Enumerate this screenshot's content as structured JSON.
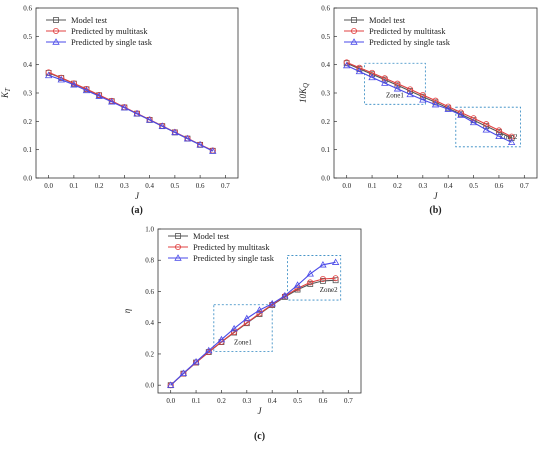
{
  "colors": {
    "model_test": "#555555",
    "multitask": "#e04040",
    "single_task": "#4a4ae8",
    "zone_box": "#2e86c1",
    "axis": "#333333"
  },
  "chart_data": [
    {
      "type": "line",
      "panel_label": "(a)",
      "xlabel": "J",
      "ylabel": "K_T",
      "xlim": [
        -0.05,
        0.75
      ],
      "ylim": [
        0,
        0.6
      ],
      "xticks": [
        "0.0",
        "0.1",
        "0.2",
        "0.3",
        "0.4",
        "0.5",
        "0.6",
        "0.7"
      ],
      "yticks": [
        "0.0",
        "0.1",
        "0.2",
        "0.3",
        "0.4",
        "0.5",
        "0.6"
      ],
      "legend_position": "top-left",
      "grid": false,
      "x": [
        0.0,
        0.05,
        0.1,
        0.15,
        0.2,
        0.25,
        0.3,
        0.35,
        0.4,
        0.45,
        0.5,
        0.55,
        0.6,
        0.65
      ],
      "series": [
        {
          "name": "Model test",
          "marker": "square",
          "values": [
            0.371,
            0.353,
            0.333,
            0.313,
            0.292,
            0.271,
            0.249,
            0.227,
            0.205,
            0.183,
            0.161,
            0.139,
            0.117,
            0.096
          ]
        },
        {
          "name": "Predicted by multitask",
          "marker": "circle",
          "values": [
            0.373,
            0.354,
            0.334,
            0.314,
            0.293,
            0.272,
            0.25,
            0.228,
            0.206,
            0.184,
            0.162,
            0.14,
            0.118,
            0.097
          ]
        },
        {
          "name": "Predicted by single task",
          "marker": "triangle",
          "values": [
            0.362,
            0.347,
            0.329,
            0.309,
            0.289,
            0.269,
            0.248,
            0.227,
            0.205,
            0.183,
            0.161,
            0.139,
            0.117,
            0.095
          ]
        }
      ],
      "zones": []
    },
    {
      "type": "line",
      "panel_label": "(b)",
      "xlabel": "J",
      "ylabel": "10K_Q",
      "xlim": [
        -0.05,
        0.75
      ],
      "ylim": [
        0,
        0.6
      ],
      "xticks": [
        "0.0",
        "0.1",
        "0.2",
        "0.3",
        "0.4",
        "0.5",
        "0.6",
        "0.7"
      ],
      "yticks": [
        "0.0",
        "0.1",
        "0.2",
        "0.3",
        "0.4",
        "0.5",
        "0.6"
      ],
      "legend_position": "top-left",
      "grid": false,
      "x": [
        0.0,
        0.05,
        0.1,
        0.15,
        0.2,
        0.25,
        0.3,
        0.35,
        0.4,
        0.45,
        0.5,
        0.55,
        0.6,
        0.65
      ],
      "series": [
        {
          "name": "Model test",
          "marker": "square",
          "values": [
            0.405,
            0.385,
            0.366,
            0.347,
            0.327,
            0.307,
            0.287,
            0.267,
            0.246,
            0.225,
            0.204,
            0.183,
            0.162,
            0.141
          ]
        },
        {
          "name": "Predicted by multitask",
          "marker": "circle",
          "values": [
            0.408,
            0.389,
            0.371,
            0.352,
            0.333,
            0.313,
            0.293,
            0.273,
            0.252,
            0.231,
            0.211,
            0.19,
            0.168,
            0.146
          ]
        },
        {
          "name": "Predicted by single task",
          "marker": "triangle",
          "values": [
            0.397,
            0.376,
            0.355,
            0.335,
            0.315,
            0.295,
            0.276,
            0.259,
            0.243,
            0.222,
            0.196,
            0.17,
            0.147,
            0.126
          ]
        }
      ],
      "zones": [
        {
          "label": "Zone1",
          "x0": 0.07,
          "x1": 0.31,
          "y0": 0.26,
          "y1": 0.405
        },
        {
          "label": "Zone2",
          "x0": 0.43,
          "x1": 0.685,
          "y0": 0.11,
          "y1": 0.25
        }
      ]
    },
    {
      "type": "line",
      "panel_label": "(c)",
      "xlabel": "J",
      "ylabel": "η",
      "xlim": [
        -0.05,
        0.75
      ],
      "ylim": [
        -0.05,
        1.0
      ],
      "xticks": [
        "0.0",
        "0.1",
        "0.2",
        "0.3",
        "0.4",
        "0.5",
        "0.6",
        "0.7"
      ],
      "yticks": [
        "0.0",
        "0.2",
        "0.4",
        "0.6",
        "0.8",
        "1.0"
      ],
      "legend_position": "top-left",
      "grid": false,
      "x": [
        0.0,
        0.05,
        0.1,
        0.15,
        0.2,
        0.25,
        0.3,
        0.35,
        0.4,
        0.45,
        0.5,
        0.55,
        0.6,
        0.65
      ],
      "series": [
        {
          "name": "Model test",
          "marker": "square",
          "values": [
            0.0,
            0.074,
            0.145,
            0.212,
            0.276,
            0.337,
            0.397,
            0.455,
            0.513,
            0.565,
            0.612,
            0.648,
            0.668,
            0.672
          ]
        },
        {
          "name": "Predicted by multitask",
          "marker": "circle",
          "values": [
            0.0,
            0.074,
            0.145,
            0.213,
            0.278,
            0.34,
            0.4,
            0.459,
            0.516,
            0.57,
            0.62,
            0.658,
            0.68,
            0.685
          ]
        },
        {
          "name": "Predicted by single task",
          "marker": "triangle",
          "values": [
            0.0,
            0.076,
            0.15,
            0.222,
            0.292,
            0.362,
            0.427,
            0.481,
            0.522,
            0.573,
            0.641,
            0.713,
            0.771,
            0.787
          ]
        }
      ],
      "zones": [
        {
          "label": "Zone1",
          "x0": 0.17,
          "x1": 0.4,
          "y0": 0.215,
          "y1": 0.515
        },
        {
          "label": "Zone2",
          "x0": 0.46,
          "x1": 0.67,
          "y0": 0.545,
          "y1": 0.83
        }
      ]
    }
  ]
}
